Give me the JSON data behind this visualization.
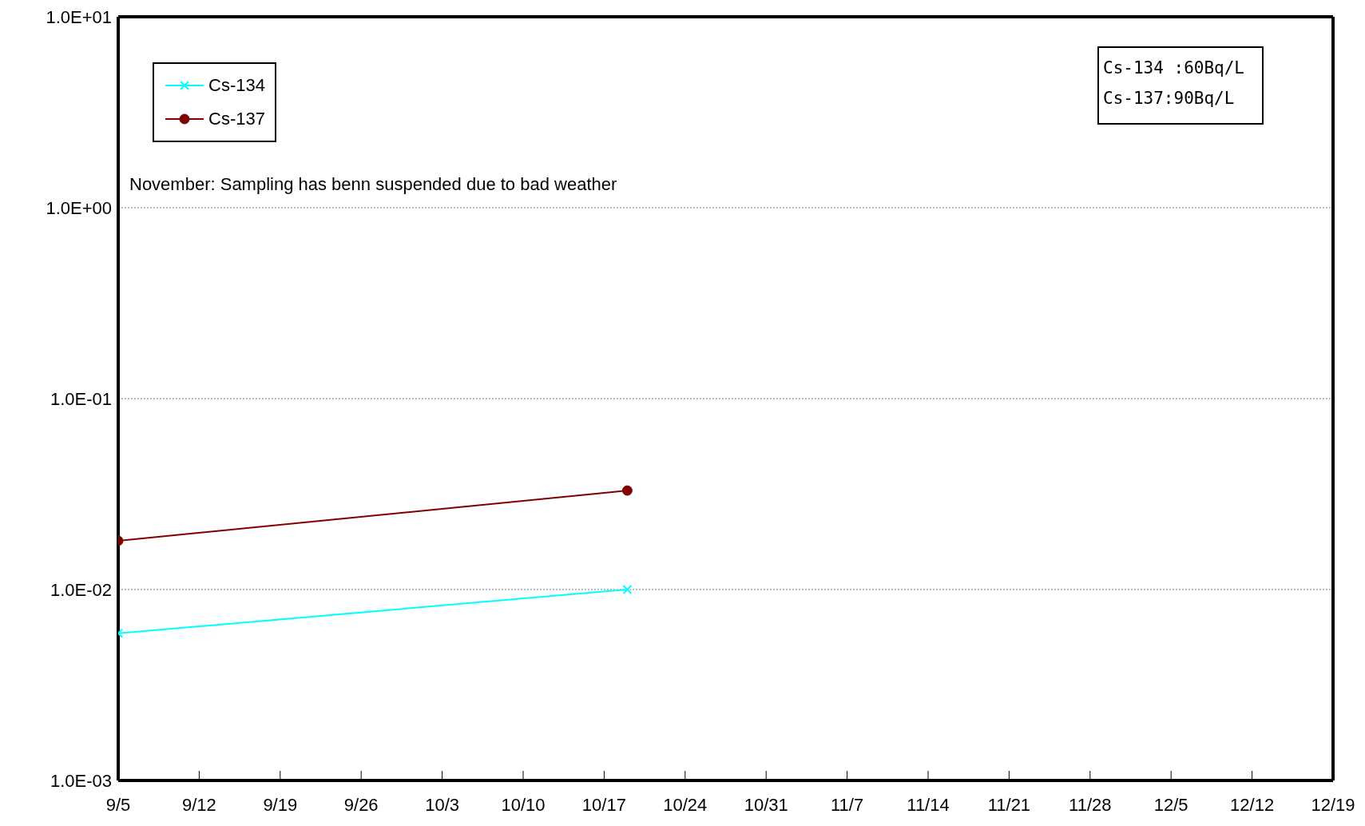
{
  "chart_data": {
    "type": "line",
    "log": "y",
    "grid": "y",
    "legend": "top left",
    "line_style": "solid",
    "annotations": [
      "November: Sampling has benn suspended due to bad weather",
      "Cs-134 :60Bq/L",
      "Cs-137:90Bq/L"
    ],
    "x": [
      "--09-05",
      "--10-19"
    ],
    "xlim": [
      "--09-05",
      "--12-19"
    ],
    "xticks": [
      {
        "value": "--09-05",
        "label": "9/5"
      },
      {
        "value": "--09-12",
        "label": "9/12"
      },
      {
        "value": "--09-19",
        "label": "9/19"
      },
      {
        "value": "--09-26",
        "label": "9/26"
      },
      {
        "value": "--10-03",
        "label": "10/3"
      },
      {
        "value": "--10-10",
        "label": "10/10"
      },
      {
        "value": "--10-17",
        "label": "10/17"
      },
      {
        "value": "--10-24",
        "label": "10/24"
      },
      {
        "value": "--10-31",
        "label": "10/31"
      },
      {
        "value": "--11-07",
        "label": "11/7"
      },
      {
        "value": "--11-14",
        "label": "11/14"
      },
      {
        "value": "--11-21",
        "label": "11/21"
      },
      {
        "value": "--11-28",
        "label": "11/28"
      },
      {
        "value": "--12-05",
        "label": "12/5"
      },
      {
        "value": "--12-12",
        "label": "12/12"
      },
      {
        "value": "--12-19",
        "label": "12/19"
      }
    ],
    "ylim": [
      0.001,
      10
    ],
    "yticks": [
      {
        "value": 0.001,
        "label": "1.0E-03"
      },
      {
        "value": 0.01,
        "label": "1.0E-02"
      },
      {
        "value": 0.1,
        "label": "1.0E-01"
      },
      {
        "value": 1,
        "label": "1.0E+00"
      },
      {
        "value": 10,
        "label": "1.0E+01"
      }
    ],
    "series": [
      {
        "name": "Cs-134",
        "color": "#00ffff",
        "marker": "cross",
        "values": [
          0.0059,
          0.01
        ]
      },
      {
        "name": "Cs-137",
        "color": "#800000",
        "marker": "circle",
        "values": [
          0.018,
          0.033
        ]
      }
    ]
  }
}
